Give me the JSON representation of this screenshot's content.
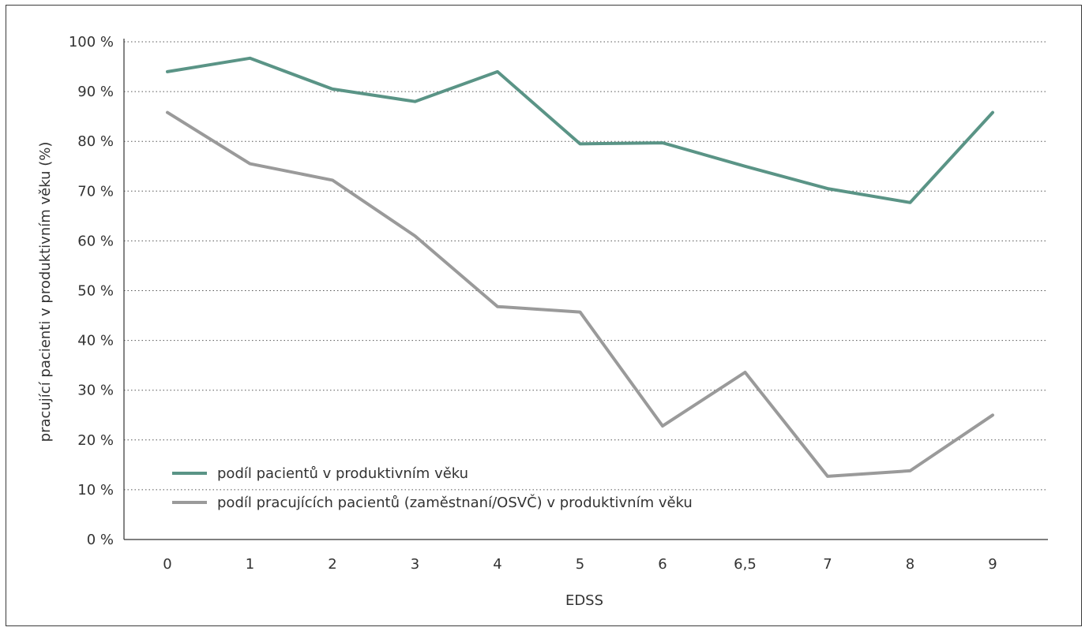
{
  "chart_data": {
    "type": "line",
    "categories": [
      "0",
      "1",
      "2",
      "3",
      "4",
      "5",
      "6",
      "6,5",
      "7",
      "8",
      "9"
    ],
    "series": [
      {
        "name": "podíl pacientů v produktivním věku",
        "color": "#5a9486",
        "values": [
          94,
          96.7,
          90.5,
          88,
          94,
          79.5,
          79.7,
          75,
          70.5,
          67.7,
          85.8
        ]
      },
      {
        "name": "podíl pracujících pacientů (zaměstnaní/OSVČ) v produktivním věku",
        "color": "#9a9a9a",
        "values": [
          85.8,
          75.5,
          72.2,
          61,
          46.8,
          45.7,
          22.8,
          33.6,
          12.7,
          13.8,
          25
        ]
      }
    ],
    "xlabel": "EDSS",
    "ylabel": "pracující pacienti v produktivním věku (%)",
    "ylim": [
      0,
      100
    ],
    "yticks": [
      "0 %",
      "10 %",
      "20 %",
      "30 %",
      "40 %",
      "50 %",
      "60 %",
      "70 %",
      "80 %",
      "90 %",
      "100 %"
    ],
    "grid": "horizontal-dotted",
    "legend_position": "bottom-left"
  }
}
